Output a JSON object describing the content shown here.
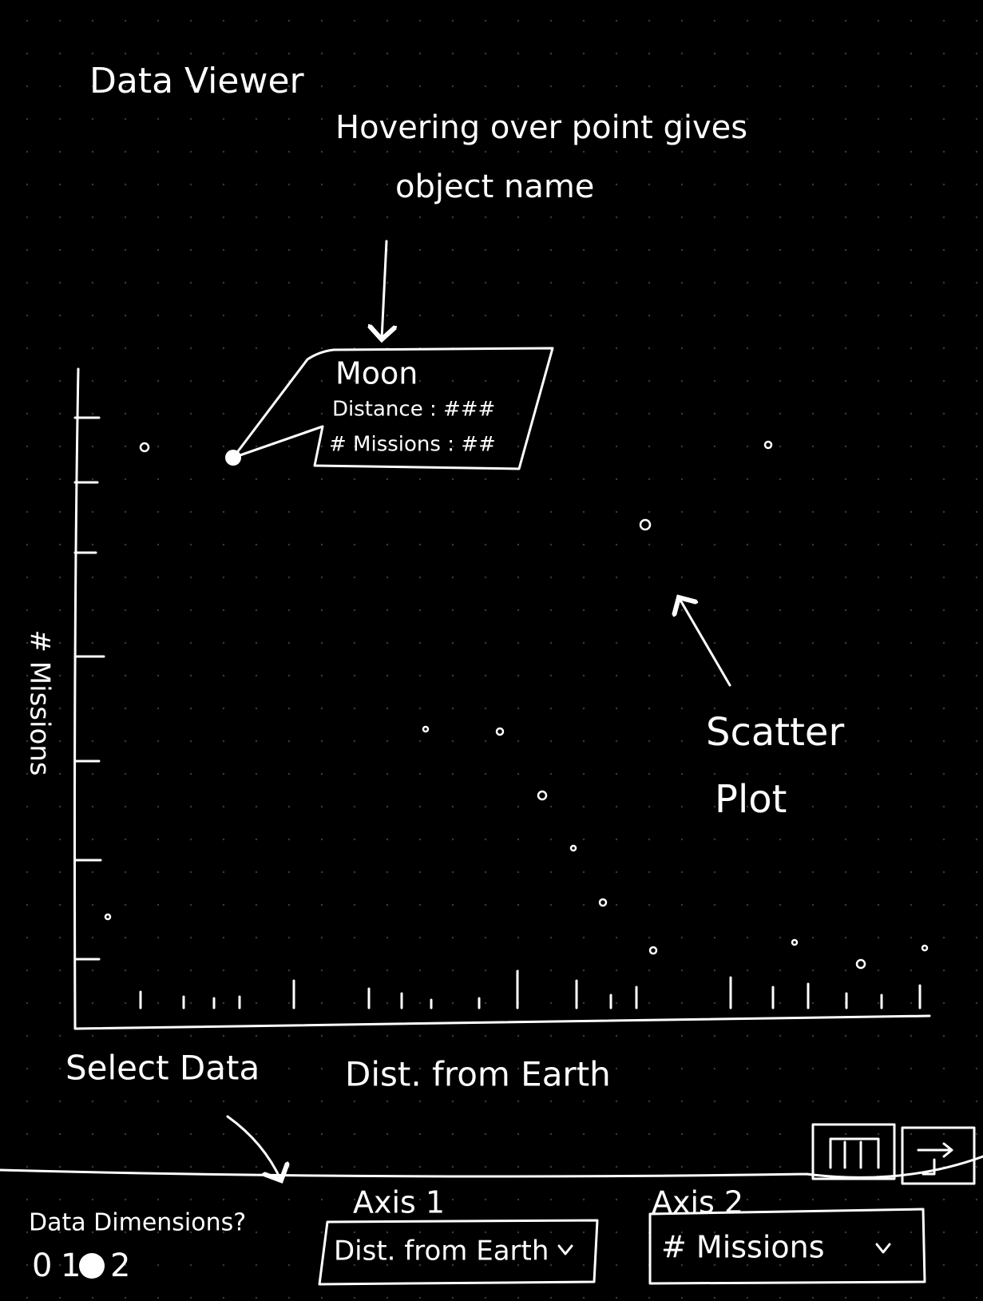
{
  "header": {
    "title": "Data Viewer"
  },
  "annotations": {
    "hover_note": [
      "Hovering over point gives",
      "object name"
    ],
    "plot_note": [
      "Scatter",
      "Plot"
    ],
    "select_note": "Select Data"
  },
  "tooltip": {
    "name": "Moon",
    "lines": [
      "Distance : ###",
      "# Missions : ##"
    ]
  },
  "plot": {
    "y_label": "# Missions",
    "x_label": "Dist. from Earth"
  },
  "controls": {
    "dimensions_label": "Data Dimensions?",
    "dimension_options": [
      "0",
      "1",
      "2"
    ],
    "axis1": {
      "label": "Axis 1",
      "value": "Dist. from Earth"
    },
    "axis2": {
      "label": "Axis 2",
      "value": "# Missions"
    }
  }
}
